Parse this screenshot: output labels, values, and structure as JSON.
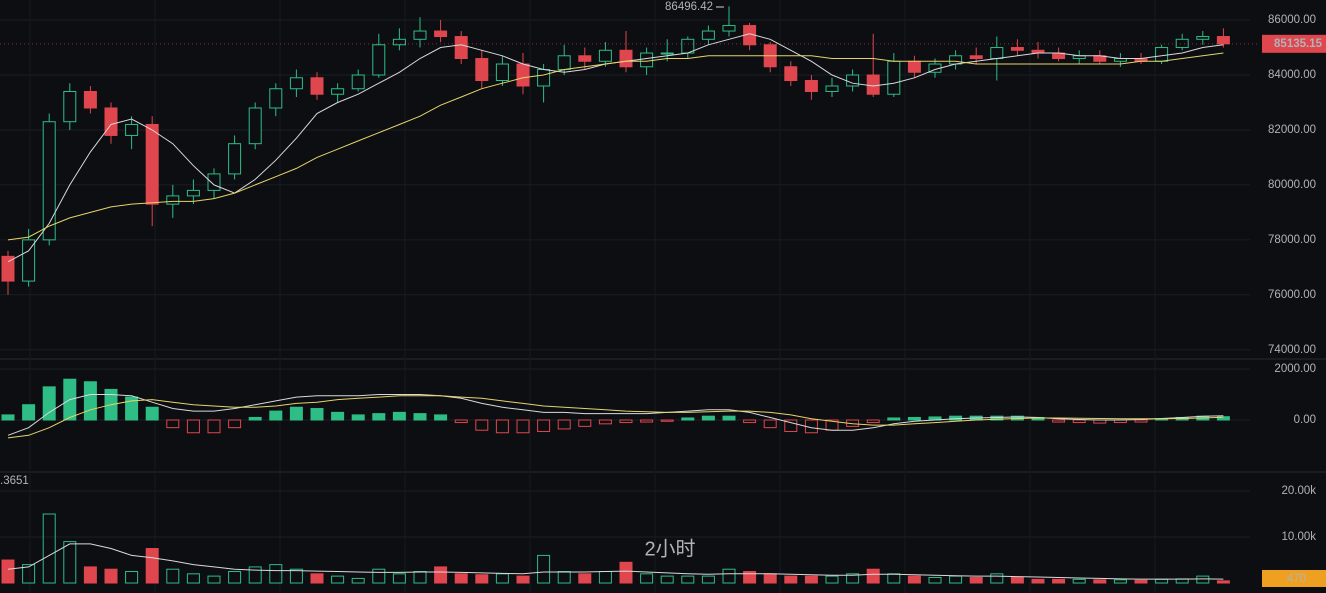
{
  "chart_data": [
    {
      "type": "candlestick",
      "up_color": "#2ebd85",
      "down_color": "#e0464e",
      "grid": true,
      "ylim": [
        73700,
        86730
      ],
      "yticks": [
        {
          "value": 74000,
          "label": "74000.00"
        },
        {
          "value": 76000,
          "label": "76000.00"
        },
        {
          "value": 78000,
          "label": "78000.00"
        },
        {
          "value": 80000,
          "label": "80000.00"
        },
        {
          "value": 82000,
          "label": "82000.00"
        },
        {
          "value": 84000,
          "label": "84000.00"
        },
        {
          "value": 86000,
          "label": "86000.00"
        }
      ],
      "open": [
        77400,
        76500,
        78000,
        82300,
        83400,
        82800,
        81800,
        82200,
        79300,
        79600,
        79800,
        80400,
        81500,
        82800,
        83500,
        83900,
        83300,
        83500,
        84000,
        85100,
        85300,
        85600,
        85400,
        84600,
        83800,
        84400,
        83600,
        84200,
        84700,
        84500,
        84900,
        84300,
        84800,
        84800,
        85300,
        85600,
        85800,
        85100,
        84300,
        83800,
        83400,
        83600,
        84000,
        83300,
        84500,
        84100,
        84400,
        84700,
        84600,
        85000,
        84900,
        84800,
        84600,
        84700,
        84500,
        84600,
        84500,
        85000,
        85300,
        85400
      ],
      "high": [
        77600,
        78400,
        82600,
        83700,
        83600,
        83000,
        82500,
        82500,
        80000,
        80200,
        80600,
        81800,
        83000,
        83700,
        84200,
        84100,
        83700,
        84200,
        85500,
        85700,
        86100,
        86000,
        85600,
        84900,
        84700,
        84800,
        84400,
        85100,
        85000,
        85200,
        85600,
        85000,
        85300,
        85400,
        85800,
        86496.42,
        85900,
        85200,
        84500,
        84000,
        83900,
        84200,
        85500,
        84800,
        84700,
        84600,
        84900,
        85000,
        85400,
        85300,
        85200,
        85000,
        84900,
        84900,
        84800,
        84800,
        85100,
        85500,
        85600,
        85700
      ],
      "low": [
        76000,
        76300,
        77800,
        82000,
        82600,
        81500,
        81300,
        78500,
        78800,
        79300,
        79500,
        80200,
        81300,
        82500,
        83200,
        83100,
        83000,
        83400,
        83900,
        84900,
        85000,
        85200,
        84400,
        83500,
        83600,
        83300,
        83000,
        84000,
        84200,
        84300,
        84100,
        84000,
        84500,
        84600,
        85100,
        85400,
        84900,
        84100,
        83600,
        83100,
        83200,
        83400,
        83200,
        83200,
        83900,
        83900,
        84200,
        84400,
        83800,
        84700,
        84600,
        84500,
        84400,
        84400,
        84300,
        84400,
        84400,
        84900,
        85100,
        85000
      ],
      "close": [
        76500,
        78000,
        82300,
        83400,
        82800,
        81800,
        82200,
        79300,
        79600,
        79800,
        80400,
        81500,
        82800,
        83500,
        83900,
        83300,
        83500,
        84000,
        85100,
        85300,
        85600,
        85400,
        84600,
        83800,
        84400,
        83600,
        84200,
        84700,
        84500,
        84900,
        84300,
        84800,
        84800,
        85300,
        85600,
        85800,
        85100,
        84300,
        83800,
        83400,
        83600,
        84000,
        83300,
        84500,
        84100,
        84400,
        84700,
        84600,
        85000,
        84900,
        84800,
        84600,
        84700,
        84500,
        84600,
        84500,
        85000,
        85300,
        85400,
        85135.15
      ],
      "ma_lines": [
        {
          "color": "#d9d9d9",
          "values": [
            77200,
            77600,
            78600,
            80000,
            81200,
            82200,
            82400,
            82000,
            81500,
            80700,
            80000,
            79700,
            80200,
            80900,
            81700,
            82600,
            83000,
            83300,
            83700,
            84100,
            84600,
            85000,
            85100,
            84900,
            84700,
            84400,
            84200,
            84100,
            84200,
            84400,
            84500,
            84600,
            84700,
            84800,
            85100,
            85300,
            85500,
            85300,
            84900,
            84500,
            84000,
            83700,
            83600,
            83700,
            83900,
            84200,
            84400,
            84500,
            84600,
            84700,
            84800,
            84800,
            84700,
            84700,
            84600,
            84600,
            84700,
            84800,
            85000,
            85100
          ]
        },
        {
          "color": "#e6d46a",
          "values": [
            78000,
            78100,
            78500,
            78800,
            79000,
            79200,
            79300,
            79350,
            79400,
            79400,
            79500,
            79700,
            80000,
            80300,
            80600,
            81000,
            81300,
            81600,
            81900,
            82200,
            82500,
            82900,
            83200,
            83500,
            83700,
            83900,
            84000,
            84200,
            84300,
            84400,
            84500,
            84500,
            84600,
            84600,
            84700,
            84700,
            84700,
            84700,
            84700,
            84700,
            84600,
            84600,
            84600,
            84500,
            84500,
            84500,
            84500,
            84400,
            84400,
            84400,
            84400,
            84400,
            84400,
            84400,
            84400,
            84500,
            84500,
            84600,
            84700,
            84800
          ]
        }
      ]
    },
    {
      "type": "macd",
      "up_color": "#2ebd85",
      "down_color": "#e0464e",
      "grid": true,
      "ylim": [
        -2000,
        2314
      ],
      "yticks": [
        {
          "value": 0,
          "label": "0.00"
        },
        {
          "value": 2000,
          "label": "2000.00"
        }
      ],
      "values": [
        200,
        600,
        1300,
        1600,
        1500,
        1200,
        900,
        500,
        -300,
        -500,
        -500,
        -300,
        100,
        350,
        500,
        450,
        300,
        200,
        250,
        300,
        250,
        200,
        -100,
        -400,
        -500,
        -500,
        -450,
        -350,
        -250,
        -150,
        -100,
        -80,
        -50,
        80,
        150,
        150,
        -100,
        -300,
        -450,
        -500,
        -400,
        -250,
        -100,
        80,
        100,
        120,
        150,
        150,
        150,
        150,
        100,
        -80,
        -100,
        -120,
        -100,
        -80,
        50,
        100,
        150,
        130
      ],
      "lines": [
        {
          "color": "#d9d9d9",
          "values": [
            -600,
            -300,
            300,
            800,
            1000,
            1000,
            950,
            700,
            450,
            350,
            350,
            450,
            600,
            750,
            900,
            950,
            950,
            950,
            1000,
            1000,
            1000,
            950,
            850,
            650,
            500,
            400,
            300,
            300,
            250,
            250,
            250,
            250,
            300,
            350,
            400,
            400,
            300,
            100,
            -100,
            -300,
            -400,
            -400,
            -300,
            -150,
            -50,
            0,
            50,
            80,
            100,
            120,
            100,
            50,
            20,
            0,
            0,
            20,
            60,
            100,
            150,
            170
          ]
        },
        {
          "color": "#e6d46a",
          "values": [
            -700,
            -600,
            -300,
            100,
            400,
            600,
            750,
            800,
            700,
            600,
            550,
            500,
            500,
            550,
            650,
            700,
            800,
            850,
            900,
            950,
            950,
            950,
            900,
            850,
            750,
            650,
            550,
            500,
            450,
            400,
            350,
            320,
            300,
            300,
            320,
            350,
            350,
            300,
            200,
            50,
            -50,
            -150,
            -200,
            -200,
            -150,
            -100,
            -50,
            0,
            30,
            60,
            80,
            80,
            70,
            60,
            50,
            50,
            50,
            60,
            80,
            110
          ]
        }
      ]
    },
    {
      "type": "volume",
      "up_color": "#2ebd85",
      "down_color": "#e0464e",
      "label_color": "#f0a020",
      "grid": true,
      "ylim": [
        -2170,
        22830
      ],
      "yticks": [
        {
          "value": 10000,
          "label": "10.00k"
        },
        {
          "value": 20000,
          "label": "20.00k"
        }
      ],
      "legend_text": ".3651",
      "watermark": "2小时",
      "values": [
        5000,
        4000,
        15000,
        9000,
        3500,
        3000,
        2500,
        7500,
        3000,
        2000,
        1500,
        2500,
        3500,
        4000,
        3000,
        2000,
        1500,
        1000,
        3000,
        2000,
        2500,
        3500,
        2000,
        1800,
        2000,
        1500,
        6000,
        2500,
        2000,
        2500,
        4500,
        2000,
        1500,
        1500,
        1500,
        3000,
        2500,
        2000,
        1500,
        1500,
        1500,
        2000,
        3000,
        2000,
        1500,
        1200,
        1500,
        1200,
        2000,
        1200,
        800,
        800,
        800,
        700,
        700,
        600,
        800,
        900,
        1500,
        470
      ],
      "ma": {
        "color": "#d9d9d9",
        "values": [
          3000,
          3500,
          6000,
          8500,
          8500,
          7500,
          6000,
          5500,
          4800,
          4000,
          3500,
          3000,
          2800,
          2700,
          2700,
          2600,
          2500,
          2400,
          2300,
          2300,
          2400,
          2400,
          2300,
          2200,
          2100,
          2000,
          2400,
          2400,
          2400,
          2500,
          2600,
          2400,
          2200,
          2000,
          1900,
          2000,
          2000,
          2000,
          1900,
          1800,
          1700,
          1700,
          1900,
          1900,
          1800,
          1700,
          1600,
          1500,
          1500,
          1400,
          1300,
          1200,
          1100,
          1000,
          900,
          850,
          850,
          850,
          900,
          850
        ]
      }
    }
  ]
}
